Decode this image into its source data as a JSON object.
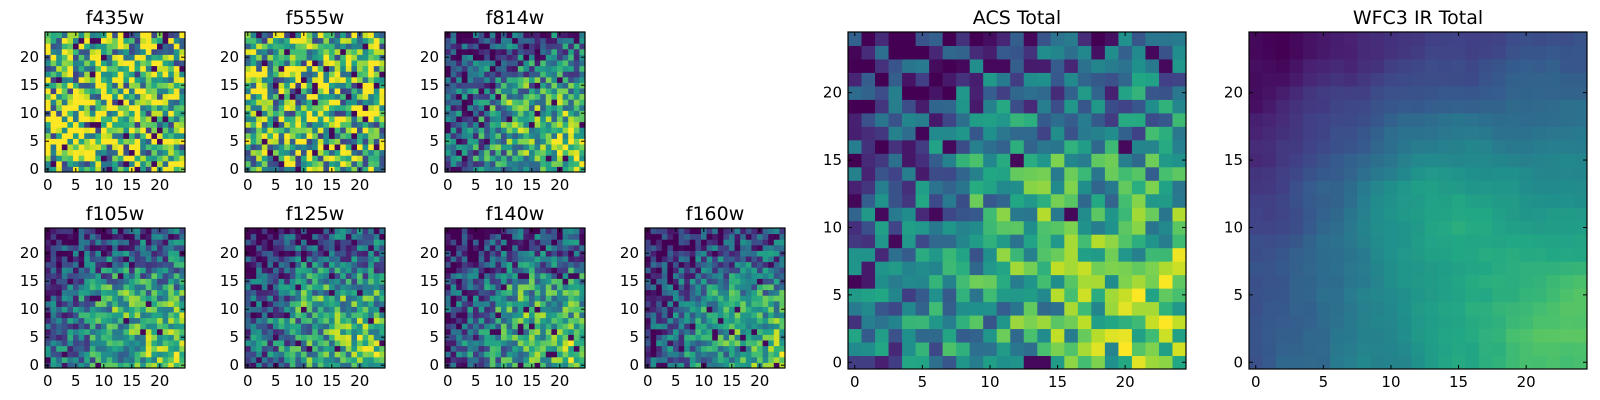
{
  "chart_data": [
    {
      "type": "heatmap",
      "title": "f435w",
      "xlim": [
        0,
        24
      ],
      "ylim": [
        0,
        24
      ],
      "xticks": [
        0,
        5,
        10,
        15,
        20
      ],
      "yticks": [
        0,
        5,
        10,
        15,
        20
      ],
      "colormap": "viridis",
      "pattern": "noise",
      "seed": 11,
      "base_level": 0.72,
      "noise_level": 0.55,
      "dark_fraction": 0.05
    },
    {
      "type": "heatmap",
      "title": "f555w",
      "xlim": [
        0,
        24
      ],
      "ylim": [
        0,
        24
      ],
      "xticks": [
        0,
        5,
        10,
        15,
        20
      ],
      "yticks": [
        0,
        5,
        10,
        15,
        20
      ],
      "colormap": "viridis",
      "pattern": "noise",
      "seed": 23,
      "base_level": 0.68,
      "noise_level": 0.5,
      "dark_fraction": 0.05
    },
    {
      "type": "heatmap",
      "title": "f814w",
      "xlim": [
        0,
        24
      ],
      "ylim": [
        0,
        24
      ],
      "xticks": [
        0,
        5,
        10,
        15,
        20
      ],
      "yticks": [
        0,
        5,
        10,
        15,
        20
      ],
      "colormap": "viridis",
      "pattern": "gradient",
      "seed": 37,
      "base_level": 0.6,
      "noise_level": 0.35,
      "dark_fraction": 0.04
    },
    {
      "type": "heatmap",
      "title": "f105w",
      "xlim": [
        0,
        24
      ],
      "ylim": [
        0,
        24
      ],
      "xticks": [
        0,
        5,
        10,
        15,
        20
      ],
      "yticks": [
        0,
        5,
        10,
        15,
        20
      ],
      "colormap": "viridis",
      "pattern": "gradient",
      "seed": 41,
      "base_level": 0.55,
      "noise_level": 0.3,
      "dark_fraction": 0.03
    },
    {
      "type": "heatmap",
      "title": "f125w",
      "xlim": [
        0,
        24
      ],
      "ylim": [
        0,
        24
      ],
      "xticks": [
        0,
        5,
        10,
        15,
        20
      ],
      "yticks": [
        0,
        5,
        10,
        15,
        20
      ],
      "colormap": "viridis",
      "pattern": "gradient",
      "seed": 53,
      "base_level": 0.55,
      "noise_level": 0.33,
      "dark_fraction": 0.04
    },
    {
      "type": "heatmap",
      "title": "f140w",
      "xlim": [
        0,
        24
      ],
      "ylim": [
        0,
        24
      ],
      "xticks": [
        0,
        5,
        10,
        15,
        20
      ],
      "yticks": [
        0,
        5,
        10,
        15,
        20
      ],
      "colormap": "viridis",
      "pattern": "gradient",
      "seed": 67,
      "base_level": 0.5,
      "noise_level": 0.3,
      "dark_fraction": 0.04
    },
    {
      "type": "heatmap",
      "title": "f160w",
      "xlim": [
        0,
        24
      ],
      "ylim": [
        0,
        24
      ],
      "xticks": [
        0,
        5,
        10,
        15,
        20
      ],
      "yticks": [
        0,
        5,
        10,
        15,
        20
      ],
      "colormap": "viridis",
      "pattern": "gradient",
      "seed": 79,
      "base_level": 0.42,
      "noise_level": 0.28,
      "dark_fraction": 0.05
    },
    {
      "type": "heatmap",
      "title": "ACS Total",
      "xlim": [
        0,
        24
      ],
      "ylim": [
        0,
        24
      ],
      "xticks": [
        0,
        5,
        10,
        15,
        20
      ],
      "yticks": [
        0,
        5,
        10,
        15,
        20
      ],
      "colormap": "viridis",
      "pattern": "gradient",
      "seed": 97,
      "base_level": 0.6,
      "noise_level": 0.28,
      "dark_fraction": 0.03
    },
    {
      "type": "heatmap",
      "title": "WFC3 IR Total",
      "xlim": [
        0,
        24
      ],
      "ylim": [
        0,
        24
      ],
      "xticks": [
        0,
        5,
        10,
        15,
        20
      ],
      "yticks": [
        0,
        5,
        10,
        15,
        20
      ],
      "colormap": "viridis",
      "pattern": "smooth",
      "seed": 131,
      "base_level": 0.45,
      "noise_level": 0.15,
      "dark_fraction": 0.0
    }
  ]
}
